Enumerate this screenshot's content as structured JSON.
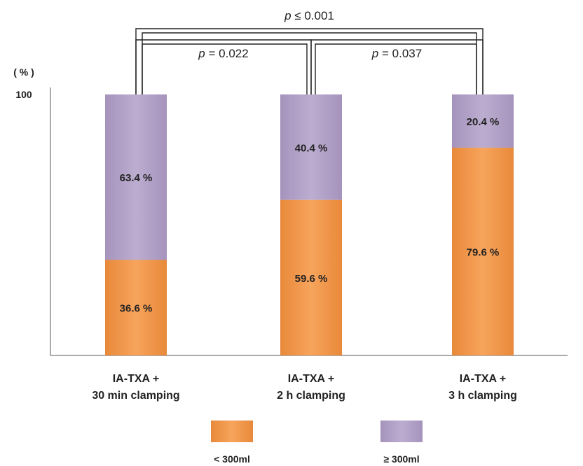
{
  "chart_data": {
    "type": "bar",
    "stacked": true,
    "y_unit_label": "( % )",
    "y_ticks": [
      "100"
    ],
    "ylim": [
      0,
      100
    ],
    "categories": [
      [
        "IA-TXA +",
        "30 min clamping"
      ],
      [
        "IA-TXA +",
        "2 h clamping"
      ],
      [
        "IA-TXA +",
        "3 h clamping"
      ]
    ],
    "series": [
      {
        "name": "< 300ml",
        "color": "#f59c4f",
        "values": [
          36.6,
          59.6,
          79.6
        ],
        "value_labels": [
          "36.6 %",
          "59.6 %",
          "79.6 %"
        ]
      },
      {
        "name": "≥ 300ml",
        "color": "#b3a2c7",
        "values": [
          63.4,
          40.4,
          20.4
        ],
        "value_labels": [
          "63.4 %",
          "40.4 %",
          "20.4 %"
        ]
      }
    ],
    "significance": [
      {
        "from": 0,
        "to": 1,
        "label_prefix": "p",
        "label_rest": " = 0.022",
        "level": 1
      },
      {
        "from": 1,
        "to": 2,
        "label_prefix": "p",
        "label_rest": " = 0.037",
        "level": 1
      },
      {
        "from": 0,
        "to": 2,
        "label_prefix": "p",
        "label_rest": " ≤ 0.001",
        "level": 2
      }
    ],
    "grid": false,
    "legend_position": "bottom"
  }
}
